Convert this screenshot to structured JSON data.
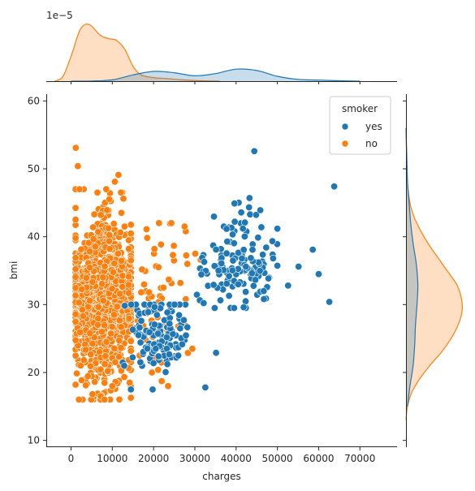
{
  "chart_data": {
    "type": "scatter",
    "kind": "jointplot",
    "xlabel": "charges",
    "ylabel": "bmi",
    "xlim": [
      -6000,
      79000
    ],
    "ylim": [
      9,
      61
    ],
    "x_ticks": [
      0,
      10000,
      20000,
      30000,
      40000,
      50000,
      60000,
      70000
    ],
    "x_tick_labels": [
      "0",
      "10000",
      "20000",
      "30000",
      "40000",
      "50000",
      "60000",
      "70000"
    ],
    "y_ticks": [
      10,
      20,
      30,
      40,
      50,
      60
    ],
    "y_tick_labels": [
      "10",
      "20",
      "30",
      "40",
      "50",
      "60"
    ],
    "top_marginal_exponent": "1e−5",
    "top_marginal_ylim": [
      0,
      7.5
    ],
    "right_marginal_xlim": [
      0,
      0.075
    ],
    "grid": false,
    "legend": {
      "title": "smoker",
      "placement": "top-right",
      "entries": [
        {
          "label": "yes",
          "color": "#1f77b4"
        },
        {
          "label": "no",
          "color": "#ff7f0e"
        }
      ]
    },
    "series": [
      {
        "name": "yes",
        "color": "#1f77b4",
        "clusters": [
          {
            "x_center": 21000,
            "x_spread": 3500,
            "y_center": 26,
            "y_spread": 3.2,
            "n": 140,
            "x_min": 12500,
            "x_max": 31000,
            "y_min": 17.5,
            "y_max": 30
          },
          {
            "x_center": 40500,
            "x_spread": 4200,
            "y_center": 35.5,
            "y_spread": 3.5,
            "n": 135,
            "x_min": 30500,
            "x_max": 50000,
            "y_min": 29.5,
            "y_max": 46
          }
        ],
        "points": [
          {
            "x": 44400,
            "y": 52.6
          },
          {
            "x": 63770,
            "y": 47.4
          },
          {
            "x": 58570,
            "y": 38.1
          },
          {
            "x": 60020,
            "y": 34.5
          },
          {
            "x": 62590,
            "y": 30.4
          },
          {
            "x": 55140,
            "y": 35.6
          },
          {
            "x": 52590,
            "y": 32.8
          },
          {
            "x": 32550,
            "y": 17.8
          },
          {
            "x": 35150,
            "y": 22.9
          },
          {
            "x": 43250,
            "y": 45.7
          },
          {
            "x": 39600,
            "y": 44.9
          },
          {
            "x": 45860,
            "y": 43.9
          },
          {
            "x": 46130,
            "y": 41.4
          },
          {
            "x": 41660,
            "y": 41.2
          },
          {
            "x": 48970,
            "y": 36.8
          },
          {
            "x": 38300,
            "y": 31.3
          },
          {
            "x": 34800,
            "y": 29.5
          },
          {
            "x": 46700,
            "y": 32.0
          },
          {
            "x": 14500,
            "y": 17.5
          },
          {
            "x": 16800,
            "y": 21.5
          },
          {
            "x": 26000,
            "y": 22.5
          }
        ],
        "kde_x": [
          [
            0,
            0
          ],
          [
            5000,
            0.02
          ],
          [
            10000,
            0.15
          ],
          [
            15000,
            0.7
          ],
          [
            20000,
            1.1
          ],
          [
            25000,
            0.95
          ],
          [
            30000,
            0.6
          ],
          [
            35000,
            0.85
          ],
          [
            40000,
            1.35
          ],
          [
            45000,
            1.2
          ],
          [
            50000,
            0.55
          ],
          [
            55000,
            0.2
          ],
          [
            60000,
            0.12
          ],
          [
            65000,
            0.05
          ],
          [
            70000,
            0.0
          ]
        ],
        "kde_y": [
          [
            15,
            0.002
          ],
          [
            18,
            0.005
          ],
          [
            21,
            0.009
          ],
          [
            24,
            0.011
          ],
          [
            27,
            0.012
          ],
          [
            30,
            0.014
          ],
          [
            33,
            0.015
          ],
          [
            36,
            0.013
          ],
          [
            39,
            0.009
          ],
          [
            42,
            0.006
          ],
          [
            45,
            0.004
          ],
          [
            48,
            0.002
          ],
          [
            52,
            0.001
          ],
          [
            56,
            0.0
          ]
        ]
      },
      {
        "name": "no",
        "color": "#ff7f0e",
        "clusters": [
          {
            "x_center": 7500,
            "x_spread": 4300,
            "y_center": 30.5,
            "y_spread": 6.0,
            "n": 1000,
            "x_min": 1100,
            "x_max": 14500,
            "y_min": 16,
            "y_max": 47
          },
          {
            "x_center": 20000,
            "x_spread": 5000,
            "y_center": 30,
            "y_spread": 6.0,
            "n": 60,
            "x_min": 14000,
            "x_max": 30000,
            "y_min": 18,
            "y_max": 42
          }
        ],
        "points": [
          {
            "x": 1150,
            "y": 53.1
          },
          {
            "x": 1660,
            "y": 50.4
          },
          {
            "x": 1900,
            "y": 16.0
          },
          {
            "x": 5200,
            "y": 16.8
          },
          {
            "x": 11500,
            "y": 49.1
          },
          {
            "x": 10600,
            "y": 48.1
          },
          {
            "x": 6400,
            "y": 46.5
          },
          {
            "x": 12100,
            "y": 46.5
          },
          {
            "x": 16600,
            "y": 22.5
          },
          {
            "x": 24300,
            "y": 42.0
          },
          {
            "x": 27500,
            "y": 41.5
          },
          {
            "x": 30100,
            "y": 37.5
          },
          {
            "x": 28200,
            "y": 36.0
          },
          {
            "x": 26500,
            "y": 33.2
          },
          {
            "x": 24700,
            "y": 37.3
          },
          {
            "x": 20200,
            "y": 38.2
          },
          {
            "x": 18300,
            "y": 41.1
          },
          {
            "x": 21200,
            "y": 35.5
          },
          {
            "x": 22400,
            "y": 32.5
          },
          {
            "x": 27800,
            "y": 30.8
          },
          {
            "x": 31400,
            "y": 36.6
          },
          {
            "x": 29400,
            "y": 23.5
          },
          {
            "x": 26000,
            "y": 26.8
          },
          {
            "x": 19600,
            "y": 20.0
          },
          {
            "x": 14200,
            "y": 18.5
          },
          {
            "x": 12700,
            "y": 45.6
          }
        ],
        "kde_x": [
          [
            -4000,
            0
          ],
          [
            -2000,
            0.5
          ],
          [
            0,
            2.8
          ],
          [
            2000,
            5.6
          ],
          [
            3500,
            6.4
          ],
          [
            5000,
            6.2
          ],
          [
            7000,
            5.2
          ],
          [
            9000,
            4.8
          ],
          [
            11000,
            4.6
          ],
          [
            13000,
            3.6
          ],
          [
            15000,
            1.7
          ],
          [
            17000,
            0.7
          ],
          [
            20000,
            0.4
          ],
          [
            23000,
            0.3
          ],
          [
            27000,
            0.15
          ],
          [
            32000,
            0.04
          ],
          [
            36000,
            0.0
          ]
        ],
        "kde_y": [
          [
            13,
            0.0
          ],
          [
            15,
            0.002
          ],
          [
            17,
            0.007
          ],
          [
            19,
            0.017
          ],
          [
            21,
            0.03
          ],
          [
            23,
            0.045
          ],
          [
            25,
            0.057
          ],
          [
            27,
            0.066
          ],
          [
            29,
            0.071
          ],
          [
            31,
            0.07
          ],
          [
            33,
            0.064
          ],
          [
            35,
            0.052
          ],
          [
            37,
            0.04
          ],
          [
            39,
            0.028
          ],
          [
            41,
            0.018
          ],
          [
            43,
            0.01
          ],
          [
            45,
            0.005
          ],
          [
            48,
            0.002
          ],
          [
            52,
            0.0007
          ],
          [
            56,
            0.0
          ]
        ]
      }
    ]
  }
}
